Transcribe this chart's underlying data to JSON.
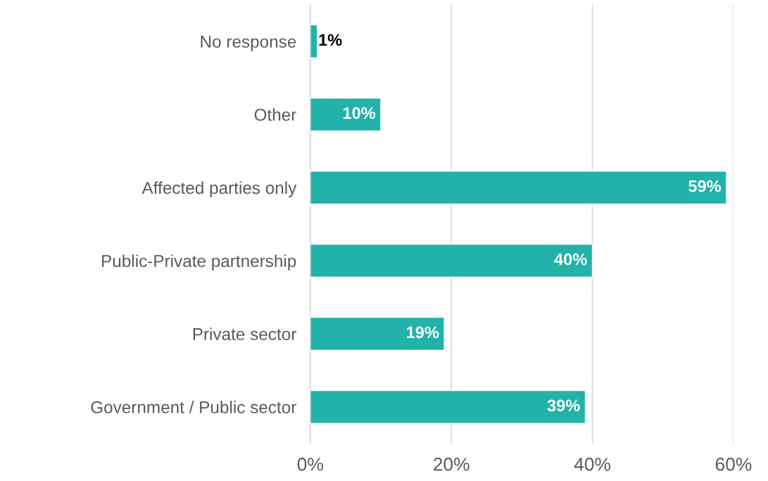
{
  "chart_data": {
    "type": "bar",
    "orientation": "horizontal",
    "categories": [
      "No response",
      "Other",
      "Affected parties only",
      "Public-Private partnership",
      "Private sector",
      "Government / Public sector"
    ],
    "values": [
      1,
      10,
      59,
      40,
      19,
      39
    ],
    "value_labels": [
      "1%",
      "10%",
      "59%",
      "40%",
      "19%",
      "39%"
    ],
    "color": "#22b2a9",
    "xlim": [
      0,
      60
    ],
    "xticks": [
      {
        "value": 0,
        "label": "0%"
      },
      {
        "value": 20,
        "label": "20%"
      },
      {
        "value": 40,
        "label": "40%"
      },
      {
        "value": 60,
        "label": "60%"
      }
    ],
    "grid": "x",
    "legend": false
  }
}
